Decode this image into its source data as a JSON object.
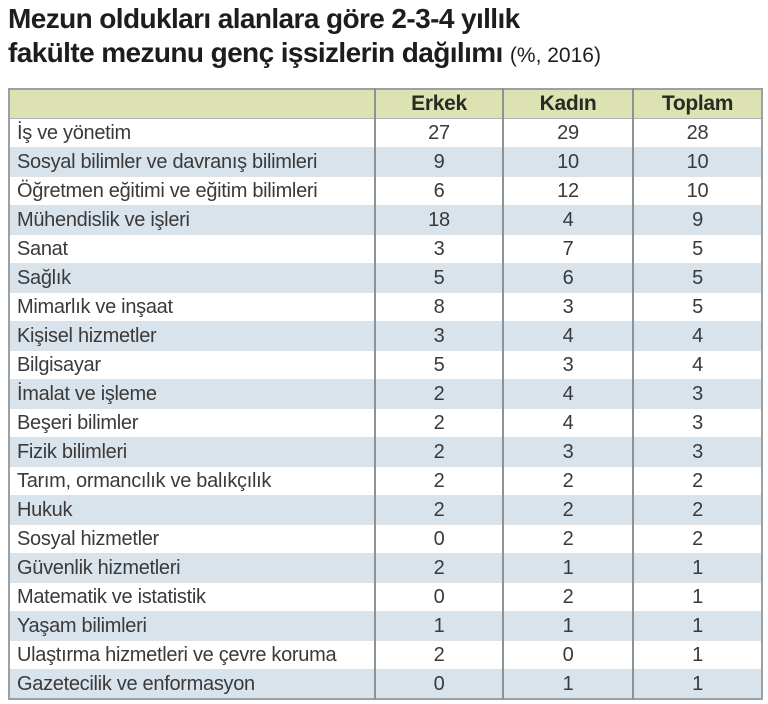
{
  "title": {
    "line1": "Mezun oldukları alanlara göre 2-3-4 yıllık",
    "line2": "fakülte mezunu genç işsizlerin dağılımı",
    "suffix": "(%, 2016)"
  },
  "chart_data": {
    "type": "table",
    "title": "Mezun oldukları alanlara göre 2-3-4 yıllık fakülte mezunu genç işsizlerin dağılımı (%, 2016)",
    "unit": "%",
    "year": "2016",
    "columns": [
      "",
      "Erkek",
      "Kadın",
      "Toplam"
    ],
    "rows": [
      [
        "İş ve yönetim",
        27,
        29,
        28
      ],
      [
        "Sosyal bilimler ve davranış bilimleri",
        9,
        10,
        10
      ],
      [
        "Öğretmen eğitimi ve eğitim bilimleri",
        6,
        12,
        10
      ],
      [
        "Mühendislik ve işleri",
        18,
        4,
        9
      ],
      [
        "Sanat",
        3,
        7,
        5
      ],
      [
        "Sağlık",
        5,
        6,
        5
      ],
      [
        "Mimarlık ve inşaat",
        8,
        3,
        5
      ],
      [
        "Kişisel hizmetler",
        3,
        4,
        4
      ],
      [
        "Bilgisayar",
        5,
        3,
        4
      ],
      [
        "İmalat ve işleme",
        2,
        4,
        3
      ],
      [
        "Beşeri bilimler",
        2,
        4,
        3
      ],
      [
        "Fizik bilimleri",
        2,
        3,
        3
      ],
      [
        "Tarım, ormancılık ve balıkçılık",
        2,
        2,
        2
      ],
      [
        "Hukuk",
        2,
        2,
        2
      ],
      [
        "Sosyal hizmetler",
        0,
        2,
        2
      ],
      [
        "Güvenlik hizmetleri",
        2,
        1,
        1
      ],
      [
        "Matematik ve istatistik",
        0,
        2,
        1
      ],
      [
        "Yaşam bilimleri",
        1,
        1,
        1
      ],
      [
        "Ulaştırma hizmetleri ve çevre koruma",
        2,
        0,
        1
      ],
      [
        "Gazetecilik ve enformasyon",
        0,
        1,
        1
      ]
    ]
  },
  "colors": {
    "header_bg": "#dde2b2",
    "row_alt_bg": "#d9e3eb",
    "row_bg": "#ffffff",
    "divider": "#8e9396",
    "outer_border": "#9aa0a3",
    "text": "#3a3a3a",
    "title_text": "#1d1d1b"
  }
}
